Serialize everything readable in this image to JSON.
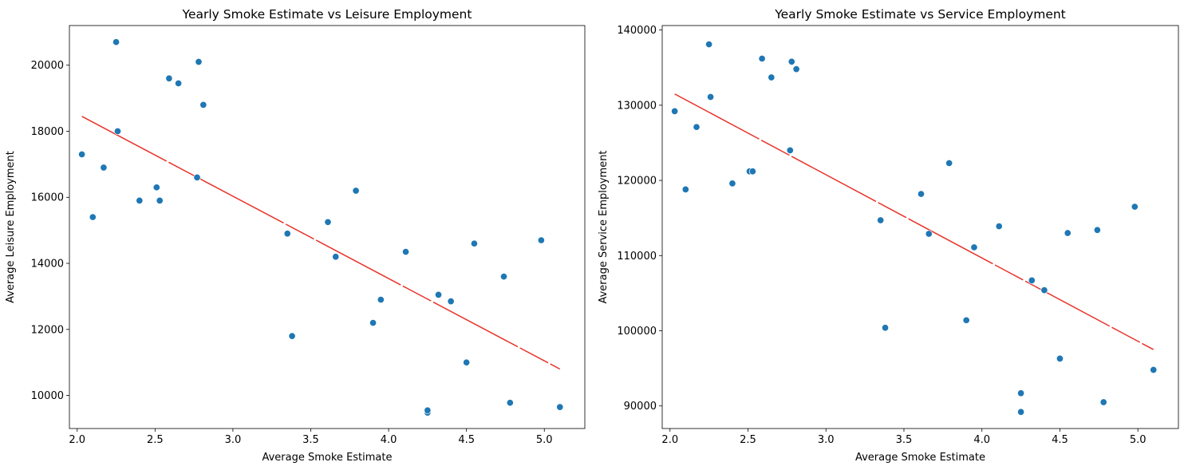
{
  "chart_data": [
    {
      "type": "scatter",
      "title": "Yearly Smoke Estimate vs Leisure Employment",
      "xlabel": "Average Smoke Estimate",
      "ylabel": "Average Leisure Employment",
      "xlim": [
        1.95,
        5.26
      ],
      "ylim": [
        9000,
        21200
      ],
      "xticks": [
        2.0,
        2.5,
        3.0,
        3.5,
        4.0,
        4.5,
        5.0
      ],
      "xtick_labels": [
        "2.0",
        "2.5",
        "3.0",
        "3.5",
        "4.0",
        "4.5",
        "5.0"
      ],
      "yticks": [
        10000,
        12000,
        14000,
        16000,
        18000,
        20000
      ],
      "ytick_labels": [
        "10000",
        "12000",
        "14000",
        "16000",
        "18000",
        "20000"
      ],
      "grid": false,
      "point_color": "#1f77b4",
      "line_color": "#e8332a",
      "points": [
        {
          "x": 2.03,
          "y": 17300
        },
        {
          "x": 2.1,
          "y": 15400
        },
        {
          "x": 2.17,
          "y": 16900
        },
        {
          "x": 2.25,
          "y": 20700
        },
        {
          "x": 2.26,
          "y": 18000
        },
        {
          "x": 2.4,
          "y": 15900
        },
        {
          "x": 2.51,
          "y": 16300
        },
        {
          "x": 2.53,
          "y": 15900
        },
        {
          "x": 2.59,
          "y": 19600
        },
        {
          "x": 2.65,
          "y": 19450
        },
        {
          "x": 2.77,
          "y": 16600
        },
        {
          "x": 2.78,
          "y": 20100
        },
        {
          "x": 2.81,
          "y": 18800
        },
        {
          "x": 3.35,
          "y": 14900
        },
        {
          "x": 3.38,
          "y": 11800
        },
        {
          "x": 3.61,
          "y": 15250
        },
        {
          "x": 3.66,
          "y": 14200
        },
        {
          "x": 3.79,
          "y": 16200
        },
        {
          "x": 3.9,
          "y": 12200
        },
        {
          "x": 3.95,
          "y": 12900
        },
        {
          "x": 4.11,
          "y": 14350
        },
        {
          "x": 4.25,
          "y": 9480
        },
        {
          "x": 4.25,
          "y": 9550
        },
        {
          "x": 4.32,
          "y": 13050
        },
        {
          "x": 4.4,
          "y": 12850
        },
        {
          "x": 4.5,
          "y": 11000
        },
        {
          "x": 4.55,
          "y": 14600
        },
        {
          "x": 4.74,
          "y": 13600
        },
        {
          "x": 4.78,
          "y": 9780
        },
        {
          "x": 4.98,
          "y": 14700
        },
        {
          "x": 5.1,
          "y": 9650
        }
      ],
      "trendline": {
        "x": [
          2.03,
          5.1
        ],
        "y": [
          18450,
          10800
        ]
      }
    },
    {
      "type": "scatter",
      "title": "Yearly Smoke Estimate vs Service Employment",
      "xlabel": "Average Smoke Estimate",
      "ylabel": "Average Service Employment",
      "xlim": [
        1.95,
        5.26
      ],
      "ylim": [
        87000,
        140600
      ],
      "xticks": [
        2.0,
        2.5,
        3.0,
        3.5,
        4.0,
        4.5,
        5.0
      ],
      "xtick_labels": [
        "2.0",
        "2.5",
        "3.0",
        "3.5",
        "4.0",
        "4.5",
        "5.0"
      ],
      "yticks": [
        90000,
        100000,
        110000,
        120000,
        130000,
        140000
      ],
      "ytick_labels": [
        "90000",
        "100000",
        "110000",
        "120000",
        "130000",
        "140000"
      ],
      "grid": false,
      "point_color": "#1f77b4",
      "line_color": "#e8332a",
      "points": [
        {
          "x": 2.03,
          "y": 129200
        },
        {
          "x": 2.1,
          "y": 118800
        },
        {
          "x": 2.17,
          "y": 127100
        },
        {
          "x": 2.25,
          "y": 138100
        },
        {
          "x": 2.26,
          "y": 131100
        },
        {
          "x": 2.4,
          "y": 119600
        },
        {
          "x": 2.51,
          "y": 121200
        },
        {
          "x": 2.53,
          "y": 121200
        },
        {
          "x": 2.59,
          "y": 136200
        },
        {
          "x": 2.65,
          "y": 133700
        },
        {
          "x": 2.77,
          "y": 124000
        },
        {
          "x": 2.78,
          "y": 135800
        },
        {
          "x": 2.81,
          "y": 134800
        },
        {
          "x": 3.35,
          "y": 114700
        },
        {
          "x": 3.38,
          "y": 100400
        },
        {
          "x": 3.61,
          "y": 118200
        },
        {
          "x": 3.66,
          "y": 112900
        },
        {
          "x": 3.79,
          "y": 122300
        },
        {
          "x": 3.9,
          "y": 101400
        },
        {
          "x": 3.95,
          "y": 111100
        },
        {
          "x": 4.11,
          "y": 113900
        },
        {
          "x": 4.25,
          "y": 89200
        },
        {
          "x": 4.25,
          "y": 91700
        },
        {
          "x": 4.32,
          "y": 106700
        },
        {
          "x": 4.4,
          "y": 105400
        },
        {
          "x": 4.5,
          "y": 96300
        },
        {
          "x": 4.55,
          "y": 113000
        },
        {
          "x": 4.74,
          "y": 113400
        },
        {
          "x": 4.78,
          "y": 90500
        },
        {
          "x": 4.98,
          "y": 116500
        },
        {
          "x": 5.1,
          "y": 94800
        }
      ],
      "trendline": {
        "x": [
          2.03,
          5.1
        ],
        "y": [
          131500,
          97500
        ]
      }
    }
  ]
}
